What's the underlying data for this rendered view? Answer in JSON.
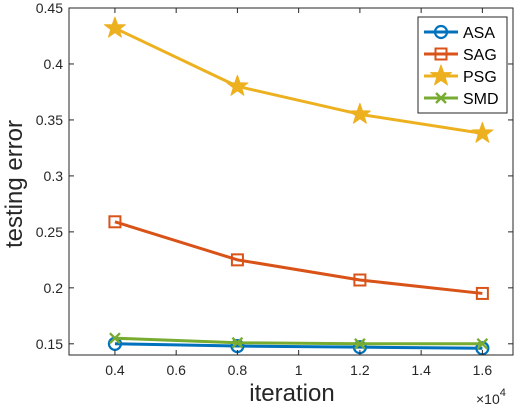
{
  "chart_data": {
    "type": "line",
    "xlabel": "iteration",
    "ylabel": "testing error",
    "x_multiplier_label": "×10",
    "x_multiplier_exponent": "4",
    "x": [
      0.4,
      0.8,
      1.2,
      1.6
    ],
    "xlim": [
      0.25,
      1.7
    ],
    "ylim": [
      0.14,
      0.45
    ],
    "x_ticks": [
      "0.4",
      "0.6",
      "0.8",
      "1",
      "1.2",
      "1.4",
      "1.6"
    ],
    "y_ticks": [
      "0.15",
      "0.2",
      "0.25",
      "0.3",
      "0.35",
      "0.4",
      "0.45"
    ],
    "grid": false,
    "legend_position": "top-right",
    "series": [
      {
        "name": "ASA",
        "values": [
          0.15,
          0.148,
          0.147,
          0.146
        ],
        "color": "#0072BD",
        "marker": "circle"
      },
      {
        "name": "SAG",
        "values": [
          0.259,
          0.225,
          0.207,
          0.195
        ],
        "color": "#D95319",
        "marker": "square"
      },
      {
        "name": "PSG",
        "values": [
          0.432,
          0.38,
          0.355,
          0.338
        ],
        "color": "#EDB120",
        "marker": "star"
      },
      {
        "name": "SMD",
        "values": [
          0.155,
          0.151,
          0.15,
          0.15
        ],
        "color": "#77AC30",
        "marker": "x"
      }
    ]
  }
}
